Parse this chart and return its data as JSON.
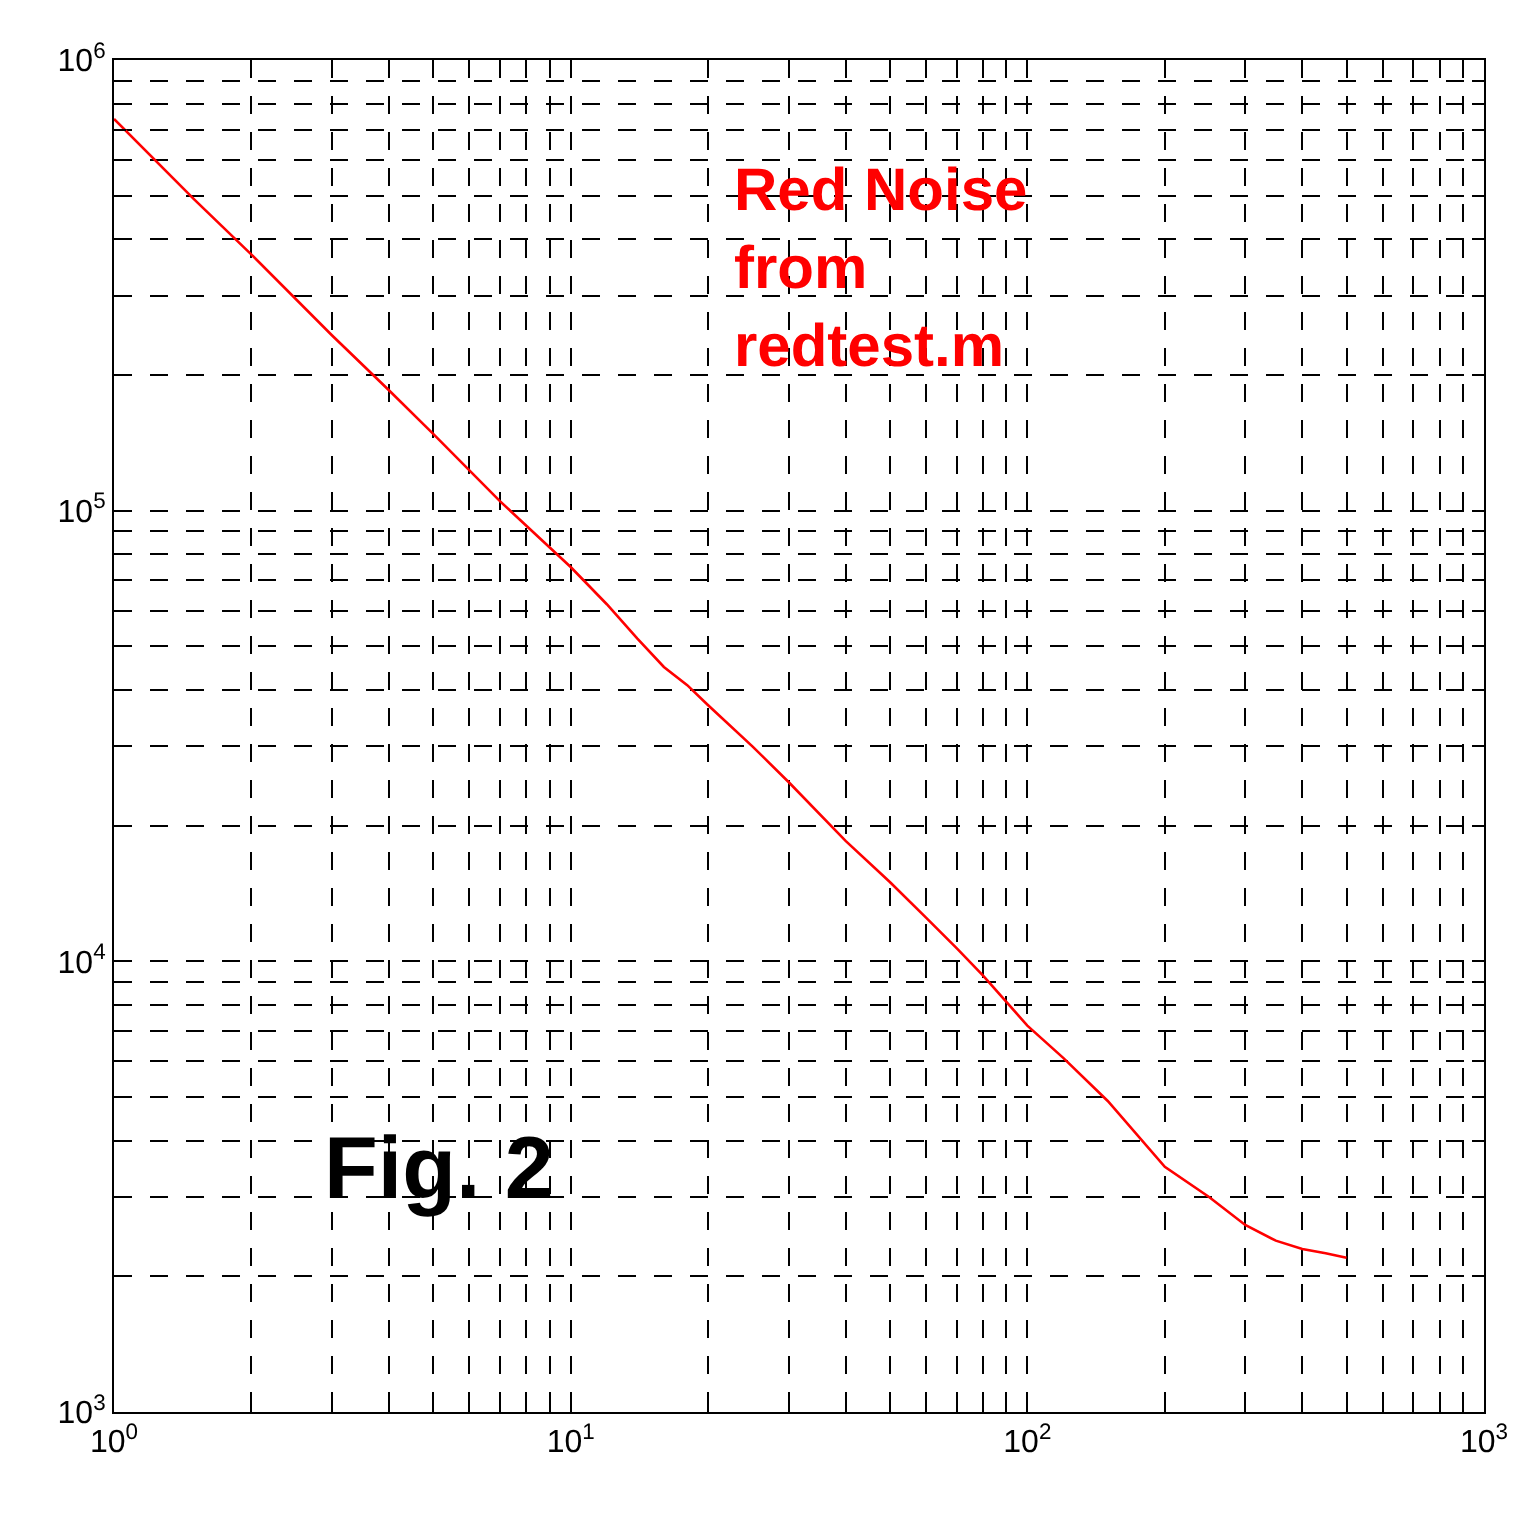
{
  "chart_data": {
    "type": "line",
    "log": "xy",
    "grid": true,
    "marker": "none",
    "line_style": "solid",
    "xlim": [
      1,
      1000
    ],
    "ylim": [
      1000,
      1000000
    ],
    "xticks": [
      {
        "value": 1,
        "label": "10$^{0}$"
      },
      {
        "value": 2,
        "label": null
      },
      {
        "value": 3,
        "label": null
      },
      {
        "value": 4,
        "label": null
      },
      {
        "value": 5,
        "label": null
      },
      {
        "value": 6,
        "label": null
      },
      {
        "value": 7,
        "label": null
      },
      {
        "value": 8,
        "label": null
      },
      {
        "value": 9,
        "label": null
      },
      {
        "value": 10,
        "label": "10$^{1}$"
      },
      {
        "value": 20,
        "label": null
      },
      {
        "value": 30,
        "label": null
      },
      {
        "value": 40,
        "label": null
      },
      {
        "value": 50,
        "label": null
      },
      {
        "value": 60,
        "label": null
      },
      {
        "value": 70,
        "label": null
      },
      {
        "value": 80,
        "label": null
      },
      {
        "value": 90,
        "label": null
      },
      {
        "value": 100,
        "label": "10$^{2}$"
      },
      {
        "value": 200,
        "label": null
      },
      {
        "value": 300,
        "label": null
      },
      {
        "value": 400,
        "label": null
      },
      {
        "value": 500,
        "label": null
      },
      {
        "value": 600,
        "label": null
      },
      {
        "value": 700,
        "label": null
      },
      {
        "value": 800,
        "label": null
      },
      {
        "value": 900,
        "label": null
      },
      {
        "value": 1000,
        "label": "10$^{3}$"
      }
    ],
    "yticks": [
      {
        "value": 1000,
        "label": "10$^{3}$"
      },
      {
        "value": 2000,
        "label": null
      },
      {
        "value": 3000,
        "label": null
      },
      {
        "value": 4000,
        "label": null
      },
      {
        "value": 5000,
        "label": null
      },
      {
        "value": 6000,
        "label": null
      },
      {
        "value": 7000,
        "label": null
      },
      {
        "value": 8000,
        "label": null
      },
      {
        "value": 9000,
        "label": null
      },
      {
        "value": 10000,
        "label": "10$^{4}$"
      },
      {
        "value": 20000,
        "label": null
      },
      {
        "value": 30000,
        "label": null
      },
      {
        "value": 40000,
        "label": null
      },
      {
        "value": 50000,
        "label": null
      },
      {
        "value": 60000,
        "label": null
      },
      {
        "value": 70000,
        "label": null
      },
      {
        "value": 80000,
        "label": null
      },
      {
        "value": 90000,
        "label": null
      },
      {
        "value": 100000,
        "label": "10$^{5}$"
      },
      {
        "value": 200000,
        "label": null
      },
      {
        "value": 300000,
        "label": null
      },
      {
        "value": 400000,
        "label": null
      },
      {
        "value": 500000,
        "label": null
      },
      {
        "value": 600000,
        "label": null
      },
      {
        "value": 700000,
        "label": null
      },
      {
        "value": 800000,
        "label": null
      },
      {
        "value": 900000,
        "label": null
      },
      {
        "value": 1000000,
        "label": "10$^{6}$"
      }
    ],
    "annotations": [
      "Red Noise\nfrom\nredtest.m",
      "Fig. 2"
    ],
    "x": [
      1,
      1.5,
      2,
      3,
      4,
      5,
      7,
      10,
      12,
      14,
      16,
      18,
      20,
      25,
      30,
      40,
      50,
      60,
      70,
      80,
      100,
      120,
      150,
      200,
      250,
      300,
      350,
      400,
      450,
      500
    ],
    "series": [
      {
        "color": "#ff0000",
        "values": [
          740000,
          490000,
          370000,
          245000,
          185000,
          148000,
          105000,
          75000,
          62000,
          52000,
          45000,
          41000,
          37000,
          30000,
          25000,
          18500,
          15000,
          12500,
          10700,
          9300,
          7200,
          6100,
          4900,
          3500,
          3000,
          2600,
          2400,
          2300,
          2250,
          2200
        ]
      }
    ]
  }
}
